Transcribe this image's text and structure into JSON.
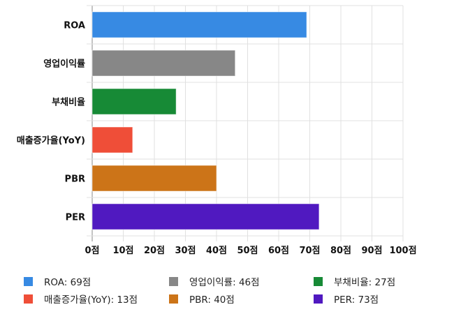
{
  "chart_data": {
    "type": "bar",
    "orientation": "horizontal",
    "categories": [
      "ROA",
      "영업이익률",
      "부채비율",
      "매출증가율(YoY)",
      "PBR",
      "PER"
    ],
    "values": [
      69,
      46,
      27,
      13,
      40,
      73
    ],
    "colors": [
      "#378ae3",
      "#878787",
      "#178a36",
      "#ef4e38",
      "#cc7418",
      "#5019c0"
    ],
    "xlim": [
      0,
      100
    ],
    "xticks": [
      0,
      10,
      20,
      30,
      40,
      50,
      60,
      70,
      80,
      90,
      100
    ],
    "tick_suffix": "점",
    "grid": true,
    "legend_placement": "bottom",
    "legend": [
      "ROA: 69점",
      "영업이익률: 46점",
      "부채비율: 27점",
      "매출증가율(YoY): 13점",
      "PBR: 40점",
      "PER: 73점"
    ]
  }
}
